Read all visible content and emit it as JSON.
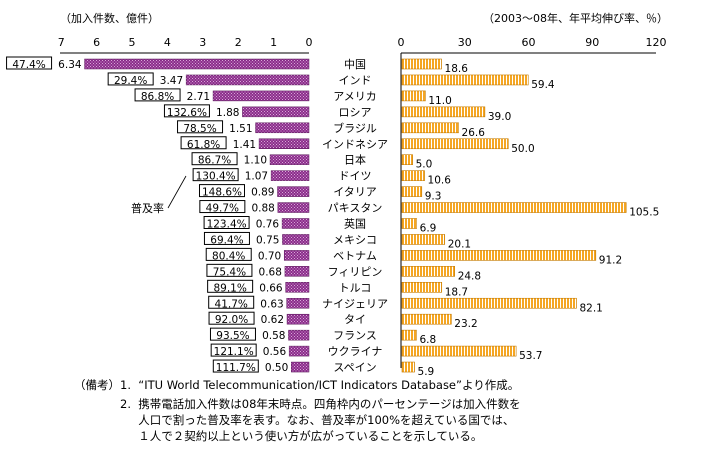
{
  "chart_data": {
    "type": "bar",
    "left_panel": {
      "axis_label": "（加入件数、億件）",
      "ticks": [
        "7",
        "6",
        "5",
        "4",
        "3",
        "2",
        "1",
        "0"
      ],
      "xlim": [
        7,
        0
      ],
      "values": [
        6.34,
        3.47,
        2.71,
        1.88,
        1.51,
        1.41,
        1.1,
        1.07,
        0.89,
        0.88,
        0.76,
        0.75,
        0.7,
        0.68,
        0.66,
        0.63,
        0.62,
        0.58,
        0.56,
        0.5
      ],
      "value_labels": [
        "6.34",
        "3.47",
        "2.71",
        "1.88",
        "1.51",
        "1.41",
        "1.10",
        "1.07",
        "0.89",
        "0.88",
        "0.76",
        "0.75",
        "0.70",
        "0.68",
        "0.66",
        "0.63",
        "0.62",
        "0.58",
        "0.56",
        "0.50"
      ],
      "penetration_rates": [
        "47.4%",
        "29.4%",
        "86.8%",
        "132.6%",
        "78.5%",
        "61.8%",
        "86.7%",
        "130.4%",
        "148.6%",
        "49.7%",
        "123.4%",
        "69.4%",
        "80.4%",
        "75.4%",
        "89.1%",
        "41.7%",
        "92.0%",
        "93.5%",
        "121.1%",
        "111.7%"
      ],
      "penetration_label": "普及率",
      "color": "#8b2d8b"
    },
    "categories": [
      "中国",
      "インド",
      "アメリカ",
      "ロシア",
      "ブラジル",
      "インドネシア",
      "日本",
      "ドイツ",
      "イタリア",
      "パキスタン",
      "英国",
      "メキシコ",
      "ベトナム",
      "フィリピン",
      "トルコ",
      "ナイジェリア",
      "タイ",
      "フランス",
      "ウクライナ",
      "スペイン"
    ],
    "right_panel": {
      "axis_label": "（2003～08年、年平均伸び率、％）",
      "ticks": [
        "0",
        "30",
        "60",
        "90",
        "120"
      ],
      "xlim": [
        0,
        120
      ],
      "values": [
        18.6,
        59.4,
        11.0,
        39.0,
        26.6,
        50.0,
        5.0,
        10.6,
        9.3,
        105.5,
        6.9,
        20.1,
        91.2,
        24.8,
        18.7,
        82.1,
        23.2,
        6.8,
        53.7,
        5.9
      ],
      "value_labels": [
        "18.6",
        "59.4",
        "11.0",
        "39.0",
        "26.6",
        "50.0",
        "5.0",
        "10.6",
        "9.3",
        "105.5",
        "6.9",
        "20.1",
        "91.2",
        "24.8",
        "18.7",
        "82.1",
        "23.2",
        "6.8",
        "53.7",
        "5.9"
      ],
      "color": "#f5a623"
    }
  },
  "notes": {
    "label": "（備考）",
    "items": [
      "1.  “ITU World Telecommunication/ICT Indicators Database”より作成。",
      "2.  携帯電話加入件数は08年末時点。四角枠内のパーセンテージは加入件数を",
      "     人口で割った普及率を表す。なお、普及率が100%を超えている国では、",
      "     １人で２契約以上という使い方が広がっていることを示している。"
    ]
  }
}
